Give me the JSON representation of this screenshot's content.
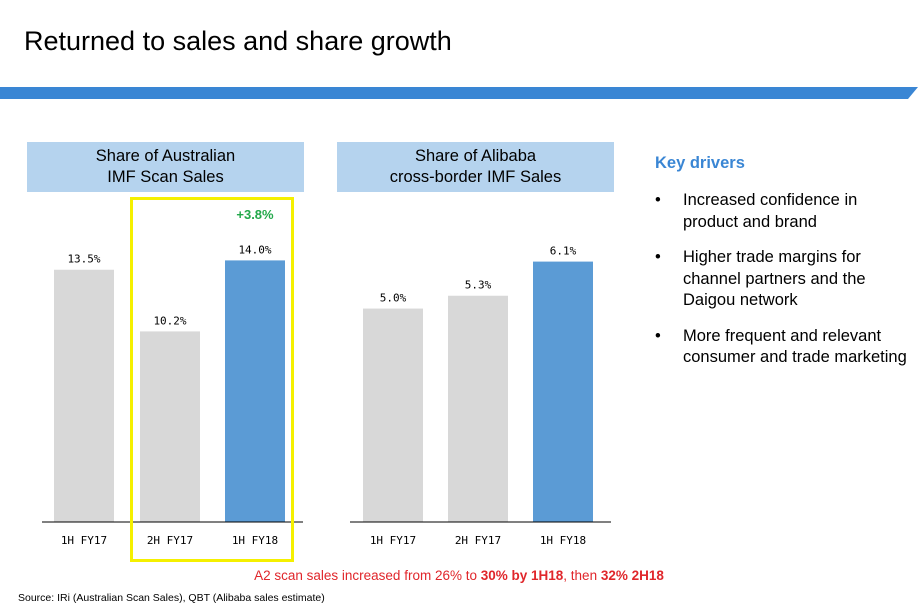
{
  "page": {
    "title": "Returned to sales and share growth",
    "key_drivers_title": "Key drivers",
    "drivers": [
      {
        "bullet": "•",
        "text": "Increased confidence in product and brand"
      },
      {
        "bullet": "•",
        "text": "Higher trade margins for channel partners and the Daigou network"
      },
      {
        "bullet": "•",
        "text": "More frequent and relevant consumer and trade marketing"
      }
    ],
    "footnote": {
      "part1": "A2 scan sales increased from 26% to ",
      "bold1": "30% by 1H18",
      "part2": ", then ",
      "bold2": "32% 2H18"
    },
    "source": "Source: IRi (Australian Scan Sales), QBT (Alibaba sales estimate)",
    "colors": {
      "accent": "#3a86d4",
      "bar_grey": "#d8d8d8",
      "bar_blue": "#5b9bd5",
      "header_bg": "#b5d3ee",
      "highlight": "#f5f000",
      "growth": "#22a84a",
      "footnote": "#e0262b"
    }
  },
  "chart_data": [
    {
      "type": "bar",
      "title_line1": "Share of Australian",
      "title_line2": "IMF Scan Sales",
      "categories": [
        "1H FY17",
        "2H FY17",
        "1H FY18"
      ],
      "values": [
        13.5,
        10.2,
        14.0
      ],
      "value_labels": [
        "13.5%",
        "10.2%",
        "14.0%"
      ],
      "highlight_categories": [
        "2H FY17",
        "1H FY18"
      ],
      "annotation": "+3.8%",
      "ylim": [
        0,
        17.5
      ]
    },
    {
      "type": "bar",
      "title_line1": "Share of Alibaba",
      "title_line2": "cross-border IMF Sales",
      "categories": [
        "1H FY17",
        "2H FY17",
        "1H FY18"
      ],
      "values": [
        5.0,
        5.3,
        6.1
      ],
      "value_labels": [
        "5.0%",
        "5.3%",
        "6.1%"
      ],
      "ylim": [
        0,
        7.66
      ]
    }
  ]
}
